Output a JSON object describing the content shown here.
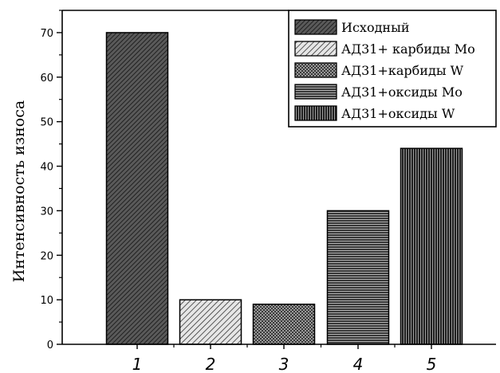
{
  "chart_data": {
    "type": "bar",
    "categories": [
      "1",
      "2",
      "3",
      "4",
      "5"
    ],
    "values": [
      70,
      10,
      9,
      30,
      44
    ],
    "ylabel": "Интенсивность износа",
    "xlabel": "",
    "ylim": [
      0,
      75
    ],
    "yticks": [
      0,
      10,
      20,
      30,
      40,
      50,
      60,
      70
    ],
    "legend_position": "top-right",
    "grid": false,
    "series": [
      {
        "name": "Исходный",
        "pattern": "diagonal-fine"
      },
      {
        "name": "АД31+ карбиды Mo",
        "pattern": "diagonal-light"
      },
      {
        "name": "АД31+карбиды W",
        "pattern": "crosshatch"
      },
      {
        "name": "АД31+оксиды Mo",
        "pattern": "horizontal"
      },
      {
        "name": "АД31+оксиды W",
        "pattern": "vertical"
      }
    ]
  }
}
